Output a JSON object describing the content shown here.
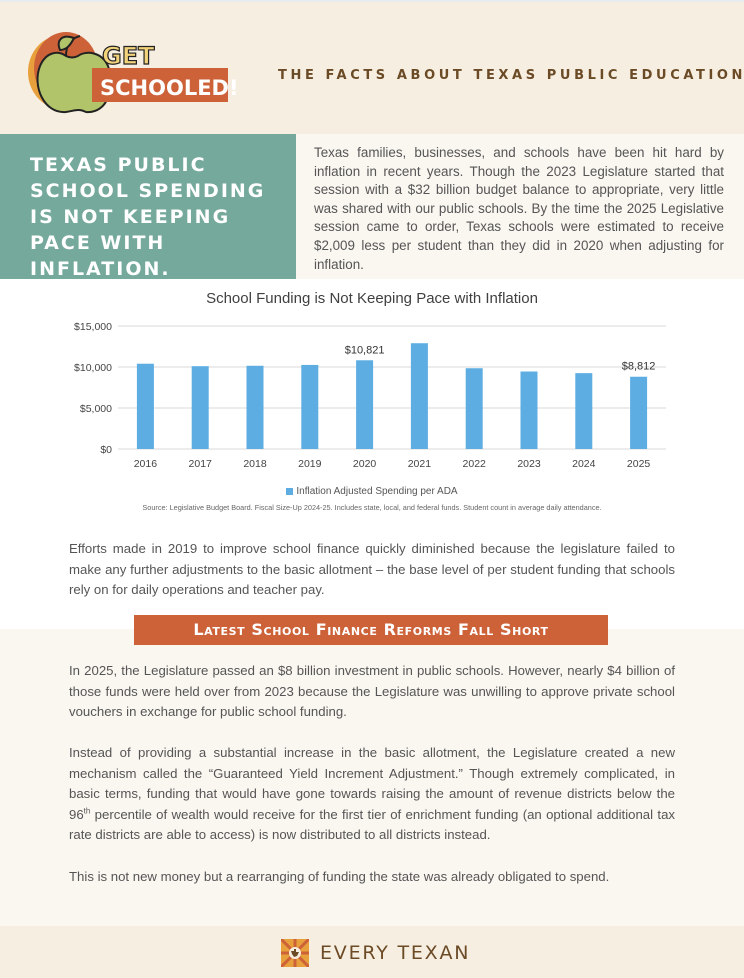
{
  "header": {
    "logo_line1": "GET",
    "logo_line2": "SCHOOLED!",
    "tagline": "THE FACTS ABOUT TEXAS PUBLIC EDUCATION"
  },
  "intro": {
    "title": "TEXAS PUBLIC SCHOOL SPENDING IS NOT KEEPING PACE WITH INFLATION.",
    "text": "Texas families, businesses, and schools have been hit hard by inflation in recent years. Though the 2023 Legislature started that session with a $32 billion budget balance to appropriate, very little was shared with our public schools. By the time the 2025 Legislative session came to order, Texas schools were estimated to receive $2,009 less per student than they did in 2020 when adjusting for inflation."
  },
  "chart_data": {
    "type": "bar",
    "title": "School Funding is Not Keeping Pace with Inflation",
    "categories": [
      "2016",
      "2017",
      "2018",
      "2019",
      "2020",
      "2021",
      "2022",
      "2023",
      "2024",
      "2025"
    ],
    "series": [
      {
        "name": "Inflation Adjusted Spending per ADA",
        "values": [
          10400,
          10100,
          10150,
          10250,
          10821,
          12900,
          9850,
          9450,
          9250,
          8812
        ],
        "color": "#5dade2"
      }
    ],
    "data_labels": [
      {
        "category": "2020",
        "text": "$10,821"
      },
      {
        "category": "2025",
        "text": "$8,812"
      }
    ],
    "y_ticks": [
      "$0",
      "$5,000",
      "$10,000",
      "$15,000"
    ],
    "y_tick_values": [
      0,
      5000,
      10000,
      15000
    ],
    "ylim": [
      0,
      15000
    ],
    "xlabel": "",
    "ylabel": "",
    "grid": true,
    "legend": "bottom",
    "source": "Source: Legislative Budget Board. Fiscal Size-Up 2024-25. Includes state, local, and federal funds. Student count in average daily attendance."
  },
  "body": {
    "para1": "Efforts made in 2019 to improve school finance quickly diminished because the legislature failed to make any further adjustments to the basic allotment – the base level of per student funding that schools rely on for daily operations and teacher pay.",
    "section_title": "Latest School Finance Reforms Fall Short",
    "para2": "In 2025, the Legislature passed an $8 billion investment in public schools. However, nearly $4 billion of those funds were held over from 2023 because the Legislature was unwilling to approve private school vouchers in exchange for public school funding.",
    "para3_a": "Instead of providing a substantial increase in the basic allotment, the Legislature created a new mechanism called the “Guaranteed Yield Increment Adjustment.” Though extremely complicated, in basic terms, funding that would have gone towards raising the amount of revenue districts below the 96",
    "para3_sup": "th",
    "para3_b": " percentile of wealth would receive for the first tier of enrichment funding (an optional additional tax rate districts are able to access) is now distributed to all districts instead.",
    "para4": "This is not new money but a rearranging of funding the state was already obligated to spend."
  },
  "footer": {
    "org_name": "EVERY TEXAN"
  },
  "colors": {
    "teal": "#74a99c",
    "orange": "#cd6239",
    "brown": "#6b4b26",
    "bar": "#5dade2",
    "cream": "#f7eee2"
  }
}
